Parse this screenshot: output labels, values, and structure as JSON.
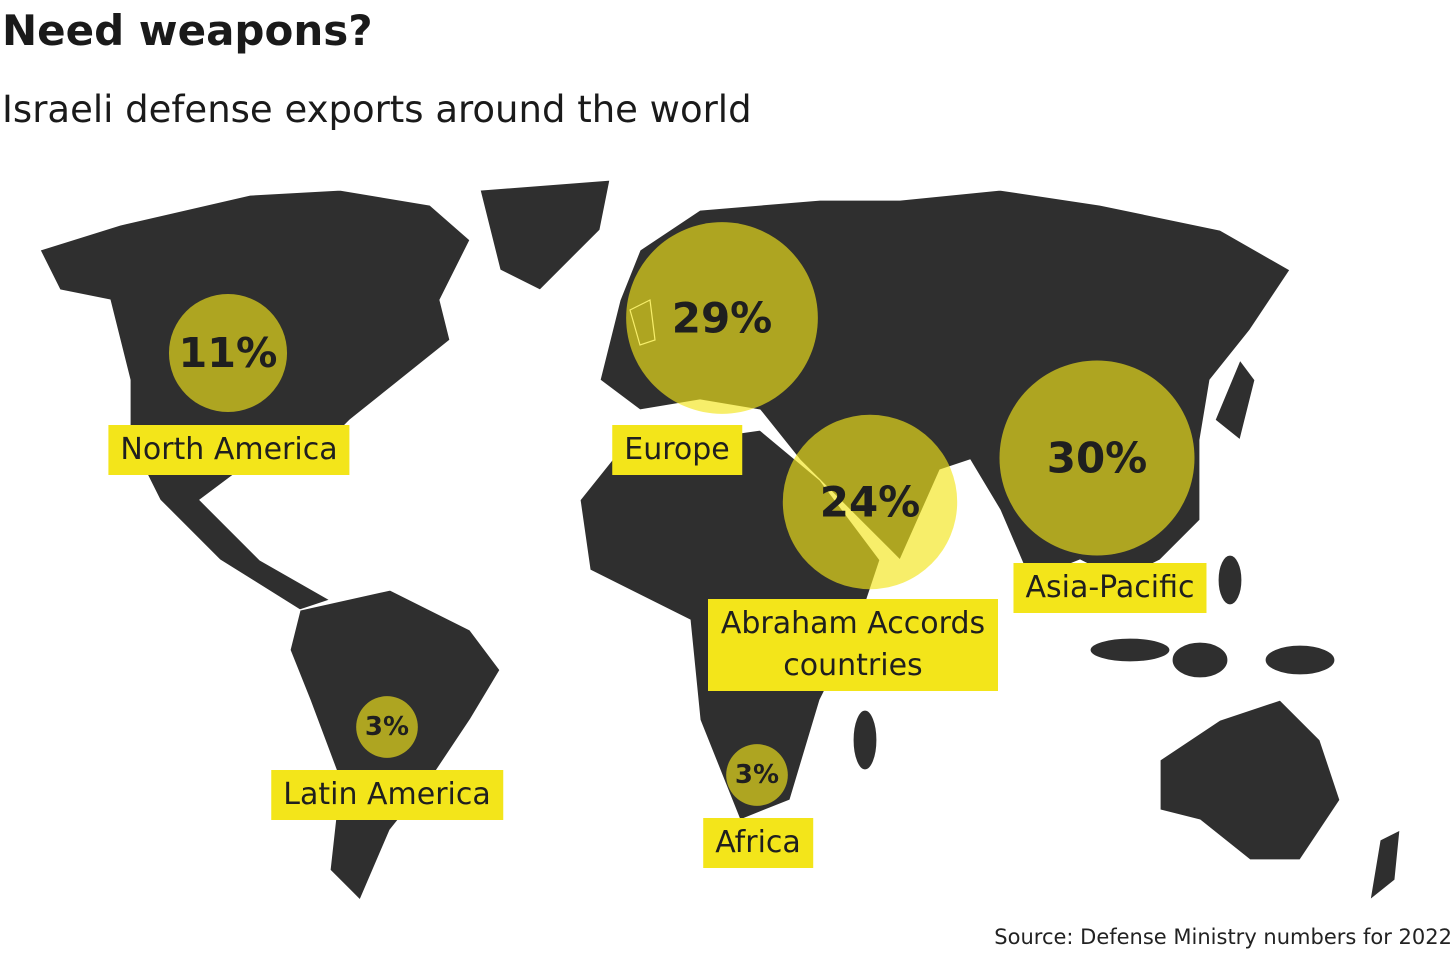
{
  "chart_data": {
    "type": "bubble-map",
    "title": "Need weapons?",
    "subtitle": "Israeli defense exports around the world",
    "source": "Source: Defense Ministry numbers for 2022",
    "categories": [
      "North America",
      "Europe",
      "Abraham Accords countries",
      "Asia-Pacific",
      "Latin America",
      "Africa"
    ],
    "values": [
      11,
      29,
      24,
      30,
      3,
      3
    ],
    "value_labels": [
      "11%",
      "29%",
      "24%",
      "30%",
      "3%",
      "3%"
    ],
    "color": "#f3e51a",
    "map_color": "#2f2f2f"
  }
}
